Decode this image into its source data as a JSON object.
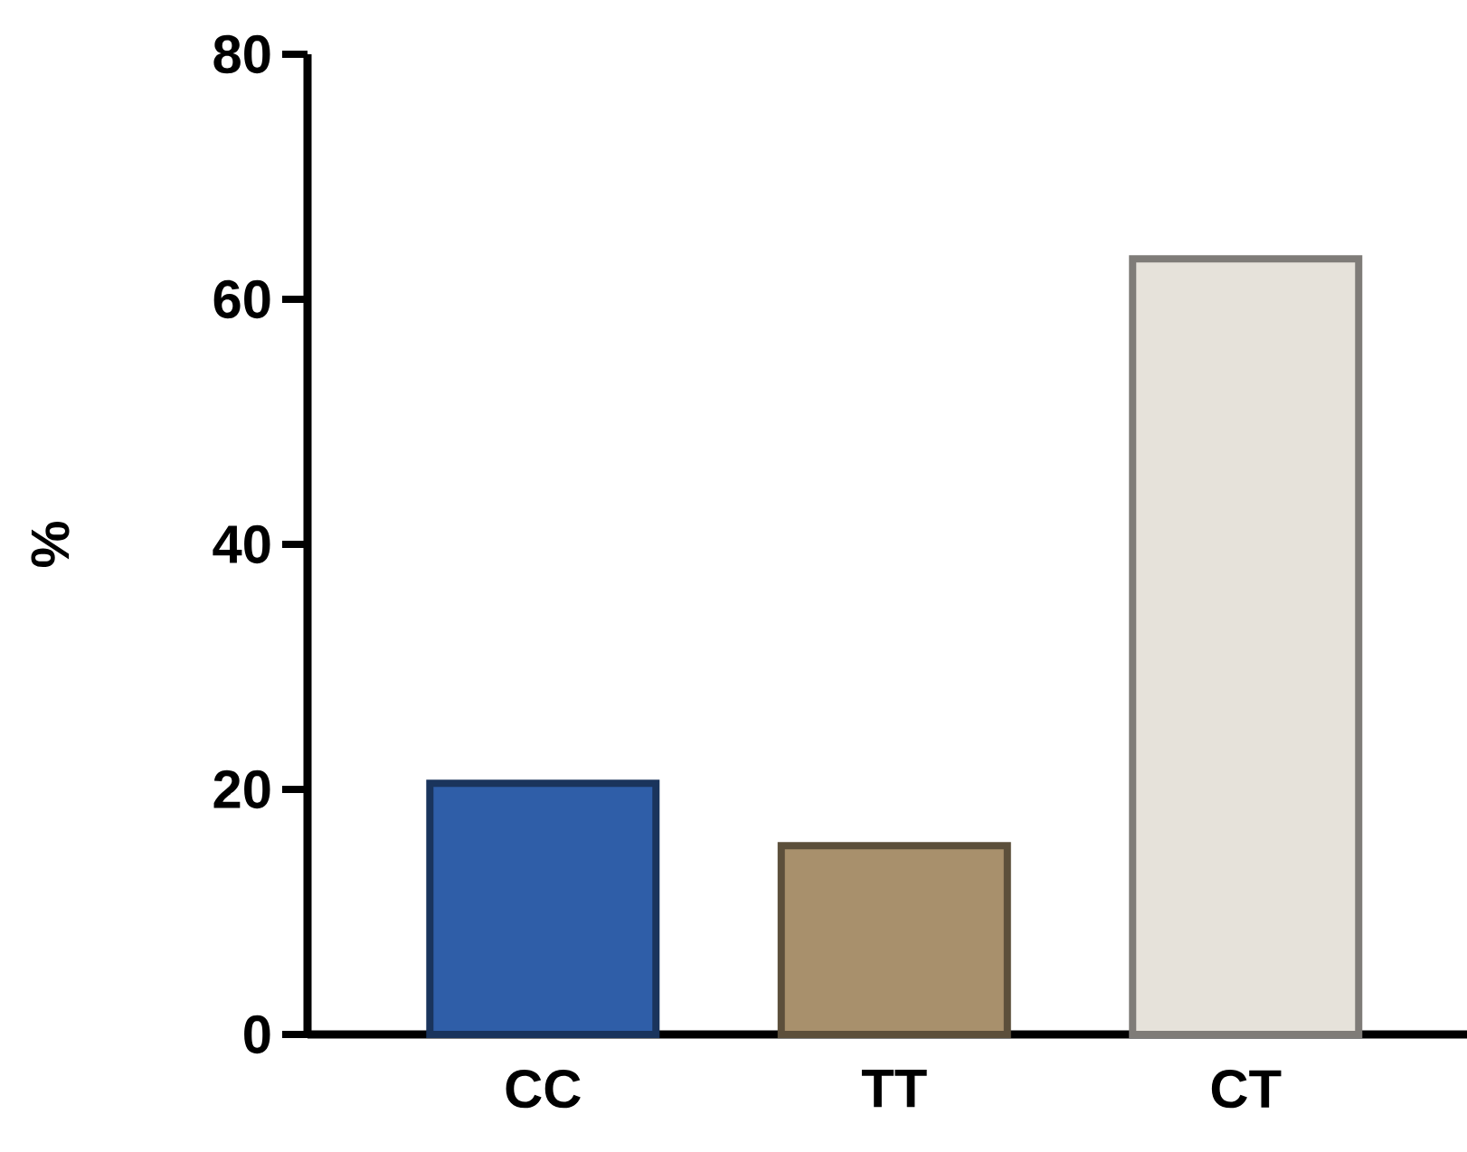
{
  "chart_data": {
    "type": "bar",
    "ylabel": "%",
    "categories": [
      "CC",
      "TT",
      "CT"
    ],
    "values": [
      20.5,
      15.4,
      63.3
    ],
    "colors": [
      "#2f5ea8",
      "#a8906c",
      "#e6e2da"
    ],
    "ylim": [
      0,
      80
    ],
    "yticks": [
      0,
      20,
      40,
      60,
      80
    ],
    "grid": false
  }
}
